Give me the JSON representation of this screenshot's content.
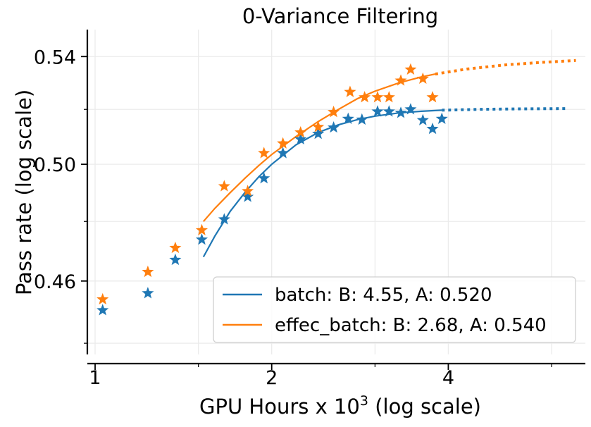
{
  "chart_data": {
    "type": "scatter",
    "title": "0-Variance Filtering",
    "xlabel": "GPU Hours x 10",
    "xlabel_sup": "3",
    "xlabel_suffix": " (log scale)",
    "ylabel": "Pass rate (log scale)",
    "x_scale": "log",
    "y_scale": "log",
    "xlim": [
      0.97,
      6.85
    ],
    "ylim": [
      0.4365,
      0.5505
    ],
    "x_ticks": [
      {
        "value": 1,
        "label": "1"
      },
      {
        "value": 2,
        "label": "2"
      },
      {
        "value": 4,
        "label": "4"
      }
    ],
    "x_gridlines": [
      1,
      1.5,
      2,
      3,
      4,
      6
    ],
    "y_ticks": [
      {
        "value": 0.46,
        "label": "0.46"
      },
      {
        "value": 0.5,
        "label": "0.50"
      },
      {
        "value": 0.54,
        "label": "0.54"
      }
    ],
    "y_gridlines": [
      0.44,
      0.46,
      0.48,
      0.5,
      0.52,
      0.54
    ],
    "grid": true,
    "legend_position": "bottom-right",
    "series": [
      {
        "name": "batch: B: 4.55, A: 0.520",
        "color": "#1f77b4",
        "marker": "star",
        "asymptote": 0.52,
        "points": [
          [
            1.03,
            0.4505
          ],
          [
            1.23,
            0.456
          ],
          [
            1.37,
            0.467
          ],
          [
            1.52,
            0.4738
          ],
          [
            1.66,
            0.4807
          ],
          [
            1.82,
            0.4885
          ],
          [
            1.94,
            0.495
          ],
          [
            2.09,
            0.504
          ],
          [
            2.24,
            0.509
          ],
          [
            2.4,
            0.511
          ],
          [
            2.55,
            0.5133
          ],
          [
            2.7,
            0.5165
          ],
          [
            2.85,
            0.5162
          ],
          [
            3.03,
            0.5192
          ],
          [
            3.17,
            0.5192
          ],
          [
            3.32,
            0.5187
          ],
          [
            3.45,
            0.52
          ],
          [
            3.62,
            0.516
          ],
          [
            3.76,
            0.5128
          ],
          [
            3.9,
            0.5165
          ]
        ],
        "fit_solid": [
          [
            1.53,
            0.468
          ],
          [
            1.6,
            0.475
          ],
          [
            1.7,
            0.4835
          ],
          [
            1.8,
            0.49
          ],
          [
            1.9,
            0.4955
          ],
          [
            2.0,
            0.5
          ],
          [
            2.2,
            0.507
          ],
          [
            2.4,
            0.5115
          ],
          [
            2.6,
            0.5143
          ],
          [
            2.8,
            0.5162
          ],
          [
            3.0,
            0.5175
          ],
          [
            3.3,
            0.5187
          ],
          [
            3.6,
            0.5193
          ],
          [
            3.9,
            0.5197
          ]
        ],
        "fit_dotted": [
          [
            3.9,
            0.5197
          ],
          [
            4.5,
            0.52
          ],
          [
            5.3,
            0.5202
          ],
          [
            6.4,
            0.5203
          ]
        ]
      },
      {
        "name": "effec_batch: B: 2.68, A: 0.540",
        "color": "#ff7f0e",
        "marker": "star",
        "asymptote": 0.54,
        "points": [
          [
            1.03,
            0.454
          ],
          [
            1.23,
            0.463
          ],
          [
            1.37,
            0.471
          ],
          [
            1.52,
            0.477
          ],
          [
            1.66,
            0.4922
          ],
          [
            1.82,
            0.4905
          ],
          [
            1.94,
            0.504
          ],
          [
            2.09,
            0.5075
          ],
          [
            2.24,
            0.5115
          ],
          [
            2.4,
            0.5135
          ],
          [
            2.55,
            0.519
          ],
          [
            2.72,
            0.5265
          ],
          [
            2.88,
            0.5245
          ],
          [
            3.03,
            0.5245
          ],
          [
            3.17,
            0.5245
          ],
          [
            3.32,
            0.5308
          ],
          [
            3.45,
            0.535
          ],
          [
            3.62,
            0.5315
          ],
          [
            3.76,
            0.5245
          ]
        ],
        "fit_solid": [
          [
            1.53,
            0.48
          ],
          [
            1.6,
            0.4845
          ],
          [
            1.7,
            0.49
          ],
          [
            1.8,
            0.495
          ],
          [
            1.9,
            0.4995
          ],
          [
            2.0,
            0.5035
          ],
          [
            2.2,
            0.51
          ],
          [
            2.4,
            0.5155
          ],
          [
            2.6,
            0.52
          ],
          [
            2.8,
            0.524
          ],
          [
            3.0,
            0.5268
          ],
          [
            3.3,
            0.53
          ],
          [
            3.6,
            0.5322
          ],
          [
            3.8,
            0.5333
          ]
        ],
        "fit_dotted": [
          [
            3.8,
            0.5333
          ],
          [
            4.3,
            0.5352
          ],
          [
            5.0,
            0.5368
          ],
          [
            5.8,
            0.5378
          ],
          [
            6.6,
            0.5385
          ]
        ]
      }
    ]
  }
}
